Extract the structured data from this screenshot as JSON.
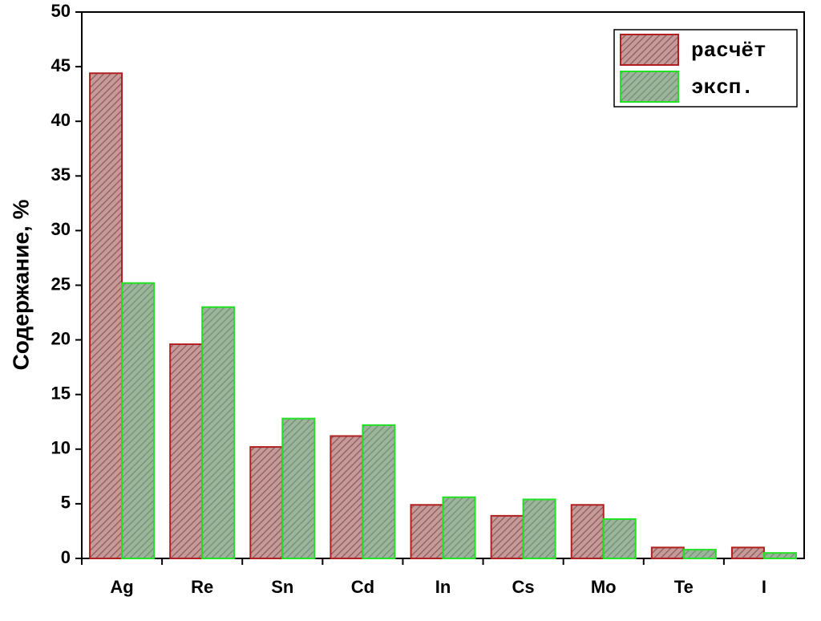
{
  "chart_data": {
    "type": "bar",
    "y_label": "Содержание, %",
    "categories": [
      "Ag",
      "Re",
      "Sn",
      "Cd",
      "In",
      "Cs",
      "Mo",
      "Te",
      "I"
    ],
    "series": [
      {
        "name": "расчёт",
        "color": "#b02020",
        "fill": "#c79a9a",
        "hatch": "#8a5a5a",
        "values": [
          44.4,
          19.6,
          10.2,
          11.2,
          4.9,
          3.9,
          4.9,
          1.0,
          1.0
        ]
      },
      {
        "name": "эксп.",
        "color": "#22e022",
        "fill": "#9cb49c",
        "hatch": "#6f8f6f",
        "values": [
          25.2,
          23.0,
          12.8,
          12.2,
          5.6,
          5.4,
          3.6,
          0.8,
          0.5
        ]
      }
    ],
    "ylim": [
      0,
      50
    ],
    "yticks": [
      0,
      5,
      10,
      15,
      20,
      25,
      30,
      35,
      40,
      45,
      50
    ],
    "legend": "upper right"
  }
}
